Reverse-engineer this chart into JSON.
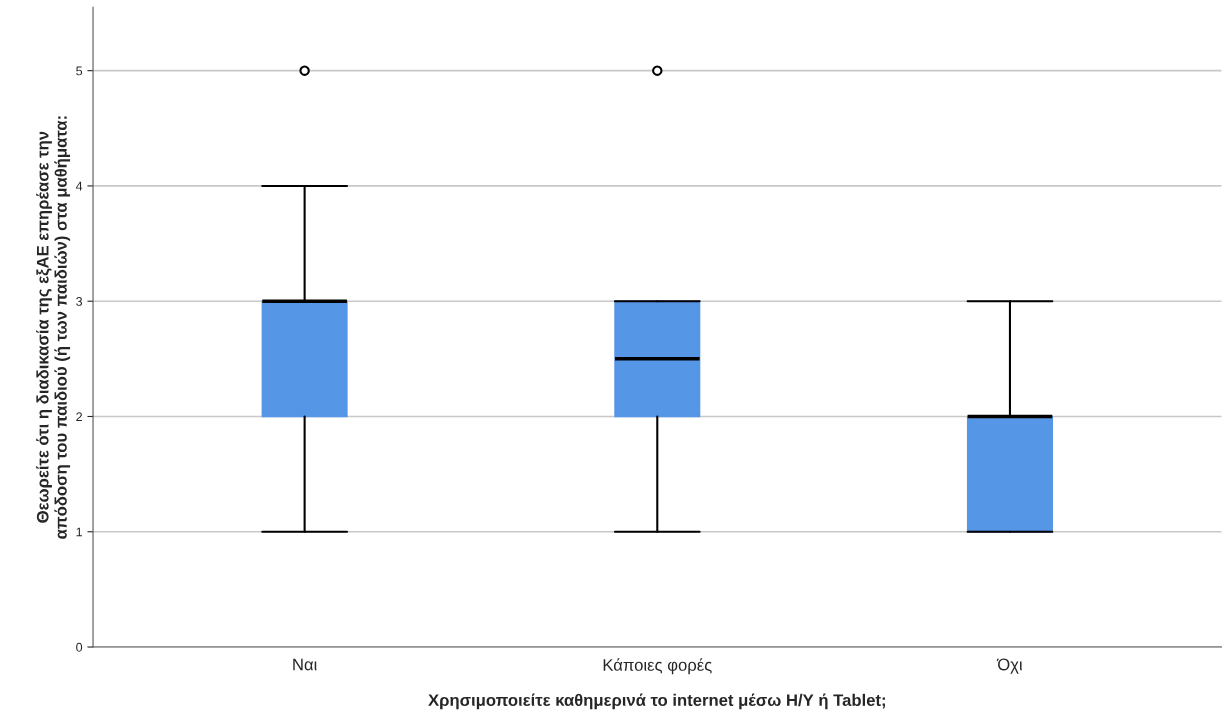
{
  "chart_data": {
    "type": "box",
    "xlabel": "Χρησιμοποιείτε καθημερινά το internet μέσω Η/Υ ή Tablet;",
    "ylabel": "Θεωρείτε ότι η διαδικασία της εξΑΕ επηρέασε την\nαπόδοση του παιδιού (ή των παιδιών) στα μαθήματα:",
    "categories": [
      "Ναι",
      "Κάποιες φορές",
      "Όχι"
    ],
    "series": [
      {
        "color": "#5596e6",
        "boxes": [
          {
            "low": 1,
            "q1": 2,
            "median": 3,
            "q3": 3,
            "high": 4,
            "outliers": [
              5
            ]
          },
          {
            "low": 1,
            "q1": 2,
            "median": 2.5,
            "q3": 3,
            "high": 3,
            "outliers": [
              5
            ]
          },
          {
            "low": 1,
            "q1": 1,
            "median": 2,
            "q3": 2,
            "high": 3
          }
        ]
      }
    ],
    "ylim": [
      0,
      5.55
    ],
    "yticks": [
      0,
      1,
      2,
      3,
      4,
      5
    ],
    "grid": "y",
    "legend": false
  }
}
